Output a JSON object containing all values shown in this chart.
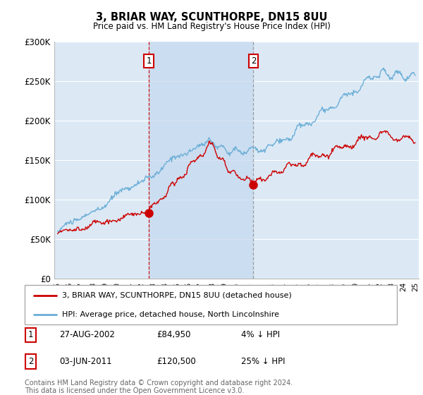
{
  "title": "3, BRIAR WAY, SCUNTHORPE, DN15 8UU",
  "subtitle": "Price paid vs. HM Land Registry's House Price Index (HPI)",
  "plot_bg_color": "#dce9f5",
  "shade_color": "#c5d8ef",
  "ylim": [
    0,
    300000
  ],
  "yticks": [
    0,
    50000,
    100000,
    150000,
    200000,
    250000,
    300000
  ],
  "ytick_labels": [
    "£0",
    "£50K",
    "£100K",
    "£150K",
    "£200K",
    "£250K",
    "£300K"
  ],
  "sale1_date": 2002.65,
  "sale1_price": 84950,
  "sale1_label": "1",
  "sale2_date": 2011.42,
  "sale2_price": 120500,
  "sale2_label": "2",
  "hpi_color": "#6baed6",
  "price_color": "#cc0000",
  "vline1_color": "#cc0000",
  "vline2_color": "#888888",
  "legend_label_price": "3, BRIAR WAY, SCUNTHORPE, DN15 8UU (detached house)",
  "legend_label_hpi": "HPI: Average price, detached house, North Lincolnshire",
  "table_row1": [
    "1",
    "27-AUG-2002",
    "£84,950",
    "4% ↓ HPI"
  ],
  "table_row2": [
    "2",
    "03-JUN-2011",
    "£120,500",
    "25% ↓ HPI"
  ],
  "footnote": "Contains HM Land Registry data © Crown copyright and database right 2024.\nThis data is licensed under the Open Government Licence v3.0."
}
